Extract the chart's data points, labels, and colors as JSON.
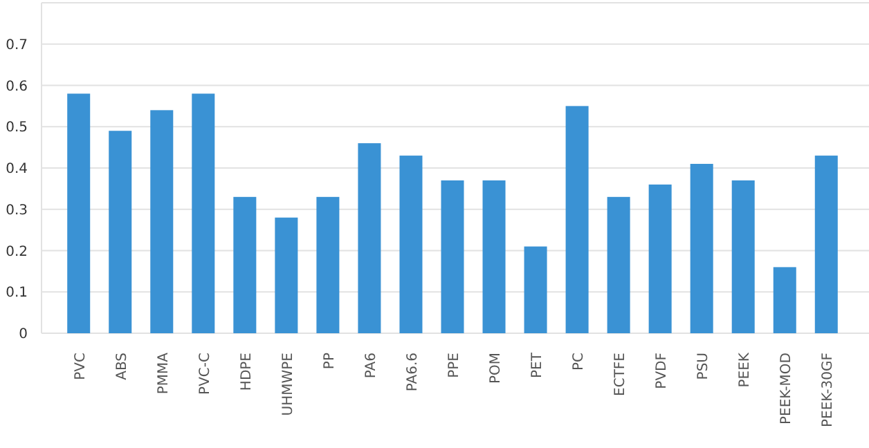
{
  "chart_data": {
    "type": "bar",
    "categories": [
      "PVC",
      "ABS",
      "PMMA",
      "PVC-C",
      "HDPE",
      "UHMWPE",
      "PP",
      "PA6",
      "PA6.6",
      "PPE",
      "POM",
      "PET",
      "PC",
      "ECTFE",
      "PVDF",
      "PSU",
      "PEEK",
      "PEEK-MOD",
      "PEEK-30GF"
    ],
    "values": [
      0.58,
      0.49,
      0.54,
      0.58,
      0.33,
      0.28,
      0.33,
      0.46,
      0.43,
      0.37,
      0.37,
      0.21,
      0.55,
      0.33,
      0.36,
      0.41,
      0.37,
      0.16,
      0.43
    ],
    "color": "#3a92d4",
    "ylim": [
      0,
      0.8
    ],
    "yticks": [
      0,
      0.1,
      0.2,
      0.3,
      0.4,
      0.5,
      0.6,
      0.7,
      {
        "value": 0.8,
        "label": null
      }
    ],
    "grid": "y"
  }
}
